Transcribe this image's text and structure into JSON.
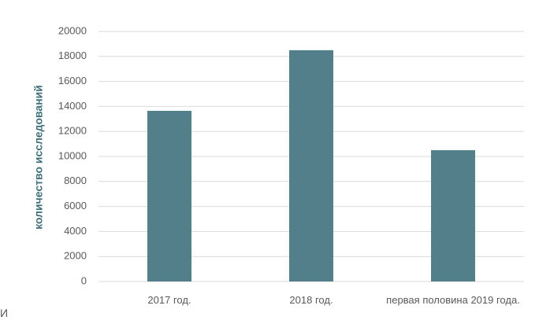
{
  "chart_data": {
    "type": "bar",
    "y_axis_label": "количество исследований",
    "categories": [
      "2017 год.",
      "2018 год.",
      "первая половина 2019 года."
    ],
    "values": [
      13650,
      18500,
      10500
    ],
    "color": "#527f8a",
    "ylim": [
      0,
      20000
    ],
    "yticks": [
      0,
      2000,
      4000,
      6000,
      8000,
      10000,
      12000,
      14000,
      16000,
      18000,
      20000
    ],
    "grid": true
  },
  "fragment_text": "И"
}
